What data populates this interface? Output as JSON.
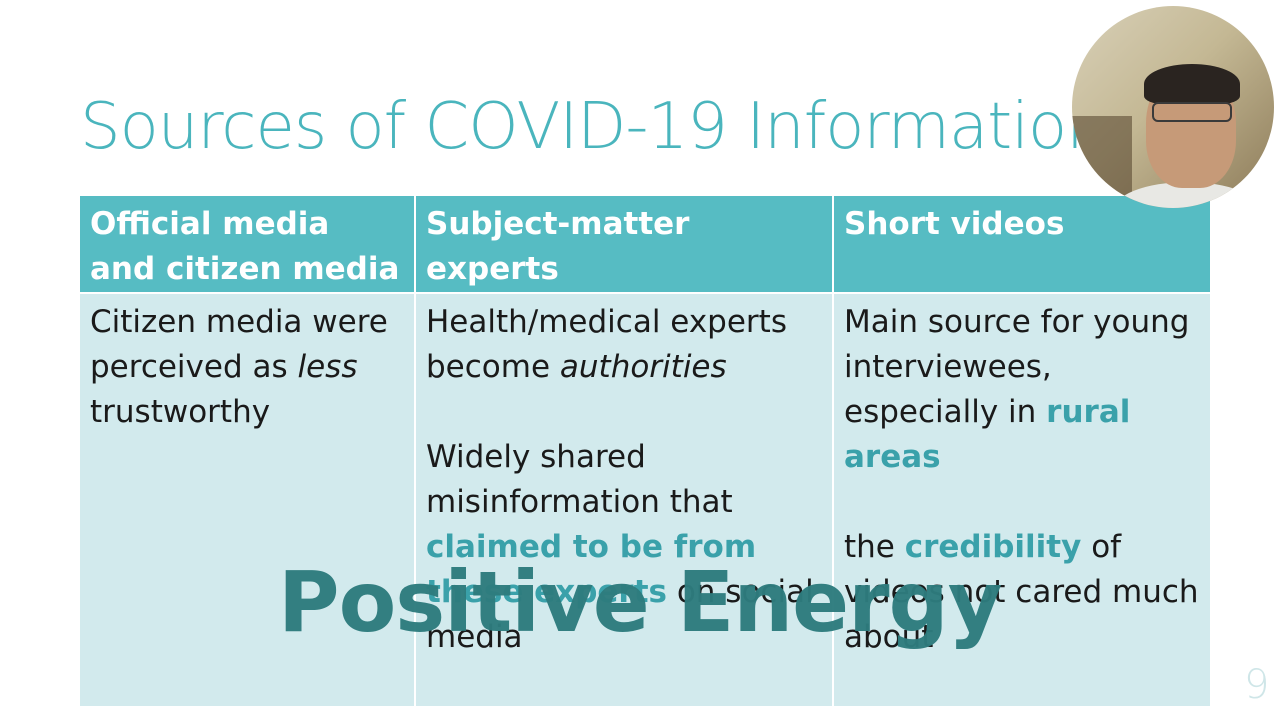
{
  "slide": {
    "title": "Sources of COVID-19 Information",
    "page_number": "9",
    "overlay_text": "Positive Energy"
  },
  "table": {
    "columns": [
      {
        "header_line1": "Official media",
        "header_line2": "and citizen media",
        "body": {
          "p1_a": "Citizen media were perceived as ",
          "p1_em": "less",
          "p1_b": " trustworthy"
        }
      },
      {
        "header_line1": "Subject-matter",
        "header_line2": "experts",
        "body": {
          "p1_a": "Health/medical experts become ",
          "p1_em": "authorities",
          "p2_a": "Widely shared misinformation that ",
          "p2_hl": "claimed to be from these experts",
          "p2_b": " on social media"
        }
      },
      {
        "header_line1": "Short videos",
        "body": {
          "p1_a": "Main source for young interviewees, especially in ",
          "p1_hl": "rural areas",
          "p2_a": "the ",
          "p2_hl": "credibility",
          "p2_b": " of videos not cared much about"
        }
      }
    ]
  },
  "colors": {
    "title": "#4ab5bd",
    "header_bg": "#56bcc3",
    "body_bg": "#d2eaed",
    "highlight": "#3aa1aa",
    "overlay": "#2e7c7e"
  },
  "icons": {
    "webcam": "presenter-webcam-icon"
  }
}
